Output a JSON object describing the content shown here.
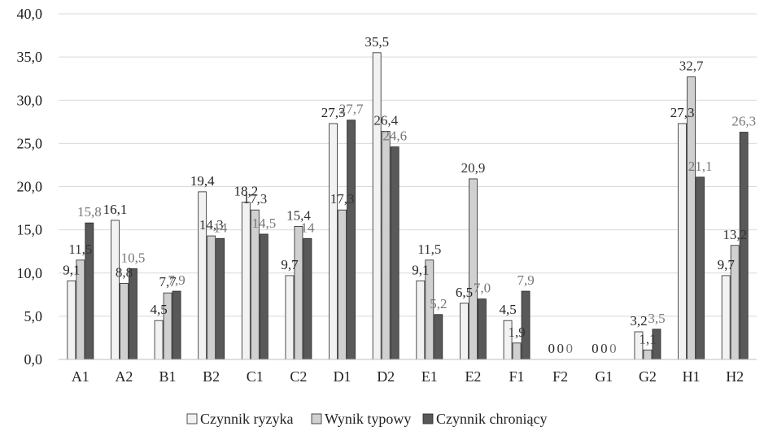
{
  "chart_data": {
    "type": "bar",
    "title": "",
    "xlabel": "",
    "ylabel": "",
    "ylim": [
      0,
      40
    ],
    "y_ticks": [
      "0,0",
      "5,0",
      "10,0",
      "15,0",
      "20,0",
      "25,0",
      "30,0",
      "35,0",
      "40,0"
    ],
    "grid": "horizontal",
    "legend_position": "bottom",
    "categories": [
      "A1",
      "A2",
      "B1",
      "B2",
      "C1",
      "C2",
      "D1",
      "D2",
      "E1",
      "E2",
      "F1",
      "F2",
      "G1",
      "G2",
      "H1",
      "H2"
    ],
    "series": [
      {
        "name": "Czynnik ryzyka",
        "color": "#f2f2f2",
        "label_color": "#222222",
        "values": [
          9.1,
          16.1,
          4.5,
          19.4,
          18.2,
          9.7,
          27.3,
          35.5,
          9.1,
          6.5,
          4.5,
          0,
          0,
          3.2,
          27.3,
          9.7
        ],
        "labels": [
          "9,1",
          "16,1",
          "4,5",
          "19,4",
          "18,2",
          "9,7",
          "27,3",
          "35,5",
          "9,1",
          "6,5",
          "4,5",
          "0",
          "0",
          "3,2",
          "27,3",
          "9,7"
        ]
      },
      {
        "name": "Wynik typowy",
        "color": "#d0d0d0",
        "label_color": "#333333",
        "values": [
          11.5,
          8.8,
          7.7,
          14.3,
          17.3,
          15.4,
          17.3,
          26.4,
          11.5,
          20.9,
          1.9,
          0,
          0,
          1.1,
          32.7,
          13.2
        ],
        "labels": [
          "11,5",
          "8,8",
          "7,7",
          "14,3",
          "17,3",
          "15,4",
          "17,3",
          "26,4",
          "11,5",
          "20,9",
          "1,9",
          "0",
          "0",
          "1,1",
          "32,7",
          "13,2"
        ]
      },
      {
        "name": "Czynnik chroniący",
        "color": "#595959",
        "label_color": "#777777",
        "values": [
          15.8,
          10.5,
          7.9,
          14,
          14.5,
          14,
          27.7,
          24.6,
          5.2,
          7.0,
          7.9,
          0,
          0,
          3.5,
          21.1,
          26.3
        ],
        "labels": [
          "15,8",
          "10,5",
          "7,9",
          "14",
          "14,5",
          "14",
          "27,7",
          "24,6",
          "5,2",
          "7,0",
          "7,9",
          "0",
          "0",
          "3,5",
          "21,1",
          "26,3"
        ]
      }
    ]
  }
}
